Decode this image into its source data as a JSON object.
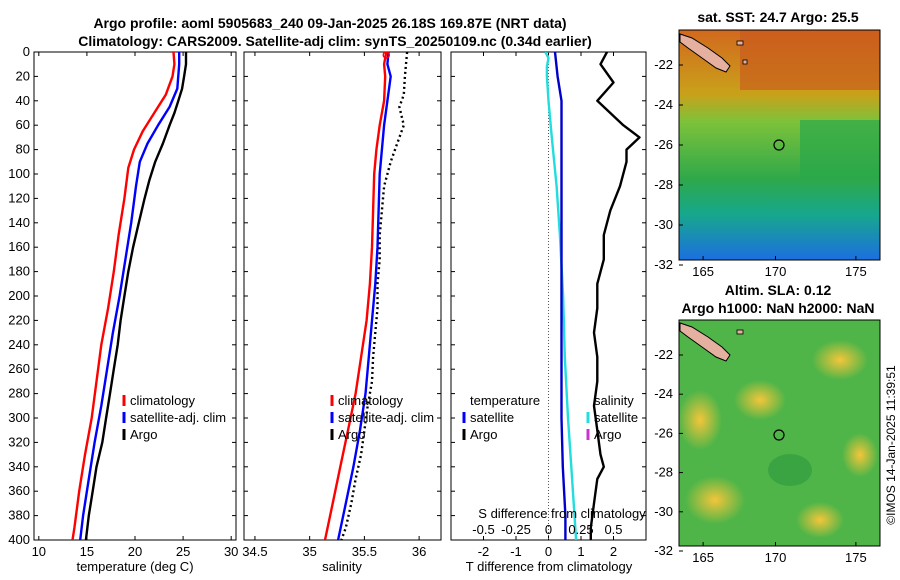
{
  "titles": {
    "line1": "Argo profile: aoml 5905683_240 09-Jan-2025 26.18S 169.87E (NRT data)",
    "line2": "Climatology: CARS2009. Satellite-adj clim: synTS_20250109.nc (0.34d earlier)"
  },
  "footer": "©IMOS 14-Jan-2025 11:39:51",
  "colors": {
    "climatology": "#ff0000",
    "satellite": "#0000ff",
    "argo": "#000000",
    "temp_diff": "#22dddd",
    "sal_diff_sat": "#0000cc"
  },
  "depth_axis": {
    "ticks": [
      "0",
      "20",
      "40",
      "60",
      "80",
      "100",
      "120",
      "140",
      "160",
      "180",
      "200",
      "220",
      "240",
      "260",
      "280",
      "300",
      "320",
      "340",
      "360",
      "380",
      "400"
    ]
  },
  "chart_data": [
    {
      "type": "line",
      "name": "temperature-profile",
      "xlabel": "temperature (deg C)",
      "xlim": [
        9.5,
        30.5
      ],
      "ylim": [
        0,
        400
      ],
      "x_ticks": [
        "10",
        "15",
        "20",
        "25",
        "30"
      ],
      "x_tick_values": [
        10,
        15,
        20,
        25,
        30
      ],
      "legend": [
        "climatology",
        "satellite-adj. clim",
        "Argo"
      ],
      "series": [
        {
          "name": "climatology",
          "color": "#ff0000",
          "points": [
            [
              24.0,
              0
            ],
            [
              24.1,
              10
            ],
            [
              23.9,
              20
            ],
            [
              23.2,
              35
            ],
            [
              22.0,
              50
            ],
            [
              20.8,
              65
            ],
            [
              19.9,
              80
            ],
            [
              19.3,
              95
            ],
            [
              18.9,
              120
            ],
            [
              18.3,
              150
            ],
            [
              17.8,
              180
            ],
            [
              17.2,
              210
            ],
            [
              16.5,
              240
            ],
            [
              16.0,
              270
            ],
            [
              15.5,
              300
            ],
            [
              14.8,
              330
            ],
            [
              14.2,
              360
            ],
            [
              13.7,
              390
            ],
            [
              13.5,
              400
            ]
          ]
        },
        {
          "name": "satellite-adj. clim",
          "color": "#0000ff",
          "points": [
            [
              24.6,
              0
            ],
            [
              24.6,
              10
            ],
            [
              24.4,
              30
            ],
            [
              23.6,
              45
            ],
            [
              22.4,
              60
            ],
            [
              21.3,
              75
            ],
            [
              20.5,
              90
            ],
            [
              20.1,
              110
            ],
            [
              19.6,
              140
            ],
            [
              19.0,
              170
            ],
            [
              18.4,
              200
            ],
            [
              17.7,
              230
            ],
            [
              17.1,
              260
            ],
            [
              16.5,
              290
            ],
            [
              15.8,
              320
            ],
            [
              15.2,
              350
            ],
            [
              14.6,
              380
            ],
            [
              14.3,
              400
            ]
          ]
        },
        {
          "name": "Argo",
          "color": "#000000",
          "points": [
            [
              25.3,
              0
            ],
            [
              25.3,
              10
            ],
            [
              25.1,
              20
            ],
            [
              24.9,
              30
            ],
            [
              24.5,
              40
            ],
            [
              24.1,
              50
            ],
            [
              23.6,
              60
            ],
            [
              22.9,
              75
            ],
            [
              22.1,
              90
            ],
            [
              21.5,
              105
            ],
            [
              21.0,
              120
            ],
            [
              20.4,
              140
            ],
            [
              19.8,
              160
            ],
            [
              19.3,
              180
            ],
            [
              18.9,
              200
            ],
            [
              18.5,
              220
            ],
            [
              18.2,
              240
            ],
            [
              17.8,
              260
            ],
            [
              17.4,
              280
            ],
            [
              17.0,
              300
            ],
            [
              16.6,
              320
            ],
            [
              16.0,
              340
            ],
            [
              15.6,
              360
            ],
            [
              15.2,
              380
            ],
            [
              14.9,
              400
            ]
          ]
        }
      ]
    },
    {
      "type": "line",
      "name": "salinity-profile",
      "xlabel": "salinity",
      "xlim": [
        34.4,
        36.2
      ],
      "ylim": [
        0,
        400
      ],
      "x_ticks": [
        "34.5",
        "35",
        "35.5",
        "36"
      ],
      "x_tick_values": [
        34.5,
        35.0,
        35.5,
        36.0
      ],
      "legend": [
        "climatology",
        "satellite-adj. clim",
        "Argo"
      ],
      "series": [
        {
          "name": "climatology",
          "color": "#ff0000",
          "points": [
            [
              35.7,
              0
            ],
            [
              35.68,
              10
            ],
            [
              35.69,
              20
            ],
            [
              35.68,
              40
            ],
            [
              35.64,
              60
            ],
            [
              35.61,
              80
            ],
            [
              35.59,
              100
            ],
            [
              35.58,
              130
            ],
            [
              35.57,
              160
            ],
            [
              35.55,
              190
            ],
            [
              35.52,
              220
            ],
            [
              35.47,
              250
            ],
            [
              35.42,
              280
            ],
            [
              35.35,
              310
            ],
            [
              35.28,
              340
            ],
            [
              35.21,
              370
            ],
            [
              35.14,
              400
            ]
          ]
        },
        {
          "name": "satellite-adj. clim",
          "color": "#0000ff",
          "points": [
            [
              35.72,
              0
            ],
            [
              35.71,
              10
            ],
            [
              35.74,
              20
            ],
            [
              35.71,
              40
            ],
            [
              35.68,
              60
            ],
            [
              35.66,
              80
            ],
            [
              35.64,
              100
            ],
            [
              35.63,
              130
            ],
            [
              35.62,
              160
            ],
            [
              35.6,
              190
            ],
            [
              35.57,
              220
            ],
            [
              35.54,
              250
            ],
            [
              35.51,
              280
            ],
            [
              35.46,
              310
            ],
            [
              35.4,
              340
            ],
            [
              35.33,
              370
            ],
            [
              35.26,
              400
            ]
          ]
        },
        {
          "name": "Argo",
          "color": "#000000",
          "points": [
            [
              35.89,
              0
            ],
            [
              35.87,
              20
            ],
            [
              35.86,
              35
            ],
            [
              35.82,
              45
            ],
            [
              35.86,
              60
            ],
            [
              35.8,
              75
            ],
            [
              35.74,
              90
            ],
            [
              35.68,
              110
            ],
            [
              35.66,
              130
            ],
            [
              35.64,
              150
            ],
            [
              35.64,
              170
            ],
            [
              35.62,
              190
            ],
            [
              35.62,
              210
            ],
            [
              35.6,
              230
            ],
            [
              35.58,
              250
            ],
            [
              35.57,
              270
            ],
            [
              35.53,
              290
            ],
            [
              35.5,
              310
            ],
            [
              35.47,
              330
            ],
            [
              35.42,
              350
            ],
            [
              35.38,
              370
            ],
            [
              35.33,
              390
            ],
            [
              35.29,
              400
            ]
          ]
        }
      ]
    },
    {
      "type": "line",
      "name": "difference-profile",
      "xlabel": "T difference from climatology",
      "xlabel_top": "S difference from climatology",
      "xlim": [
        -3,
        3
      ],
      "ylim": [
        0,
        400
      ],
      "x_ticks": [
        "-2",
        "-1",
        "0",
        "1",
        "2"
      ],
      "x_tick_values": [
        -2,
        -1,
        0,
        1,
        2
      ],
      "x2_lim": [
        -0.75,
        0.75
      ],
      "x2_ticks": [
        "-0.5",
        "-0.25",
        "0",
        "0.25",
        "0.5"
      ],
      "x2_tick_values": [
        -0.5,
        -0.25,
        0,
        0.25,
        0.5
      ],
      "legend_left": {
        "title": "temperature",
        "items": [
          "satellite",
          "Argo"
        ]
      },
      "legend_right": {
        "title": "salinity",
        "items": [
          "satellite",
          "Argo"
        ]
      },
      "series": [
        {
          "name": "temperature satellite",
          "color": "#22dddd",
          "axis": "T",
          "points": [
            [
              -0.1,
              0
            ],
            [
              0,
              5
            ],
            [
              -0.05,
              12
            ],
            [
              -0.05,
              20
            ],
            [
              0,
              40
            ],
            [
              0.1,
              70
            ],
            [
              0.25,
              110
            ],
            [
              0.35,
              150
            ],
            [
              0.45,
              200
            ],
            [
              0.5,
              250
            ],
            [
              0.6,
              300
            ],
            [
              0.7,
              340
            ],
            [
              0.8,
              380
            ],
            [
              0.85,
              400
            ]
          ]
        },
        {
          "name": "salinity satellite",
          "color": "#0000cc",
          "axis": "S",
          "points": [
            [
              0.05,
              0
            ],
            [
              0.07,
              20
            ],
            [
              0.1,
              40
            ],
            [
              0.1,
              80
            ],
            [
              0.1,
              120
            ],
            [
              0.1,
              180
            ],
            [
              0.1,
              240
            ],
            [
              0.1,
              300
            ],
            [
              0.11,
              340
            ],
            [
              0.13,
              380
            ],
            [
              0.13,
              400
            ]
          ]
        },
        {
          "name": "Argo T",
          "color": "#000000",
          "axis": "T",
          "points": [
            [
              1.8,
              0
            ],
            [
              1.6,
              10
            ],
            [
              2.0,
              25
            ],
            [
              1.5,
              40
            ],
            [
              1.9,
              50
            ],
            [
              2.3,
              60
            ],
            [
              2.8,
              70
            ],
            [
              2.4,
              80
            ],
            [
              2.4,
              90
            ],
            [
              2.2,
              110
            ],
            [
              1.9,
              130
            ],
            [
              1.7,
              150
            ],
            [
              1.7,
              170
            ],
            [
              1.5,
              190
            ],
            [
              1.5,
              210
            ],
            [
              1.4,
              230
            ],
            [
              1.5,
              250
            ],
            [
              1.5,
              270
            ],
            [
              1.4,
              290
            ],
            [
              1.5,
              310
            ],
            [
              1.6,
              330
            ],
            [
              1.7,
              340
            ],
            [
              1.5,
              350
            ],
            [
              1.4,
              370
            ],
            [
              1.3,
              390
            ],
            [
              1.3,
              400
            ]
          ]
        }
      ]
    }
  ],
  "maps": {
    "sst": {
      "title": "sat. SST: 24.7 Argo: 25.5",
      "x_ticks": [
        "165",
        "170",
        "175"
      ],
      "y_ticks": [
        "-22",
        "-24",
        "-26",
        "-28",
        "-30",
        "-32"
      ]
    },
    "sla": {
      "title1": "Altim. SLA: 0.12",
      "title2": "Argo h1000: NaN h2000: NaN",
      "x_ticks": [
        "165",
        "170",
        "175"
      ],
      "y_ticks": [
        "-22",
        "-24",
        "-26",
        "-28",
        "-30",
        "-32"
      ]
    }
  }
}
